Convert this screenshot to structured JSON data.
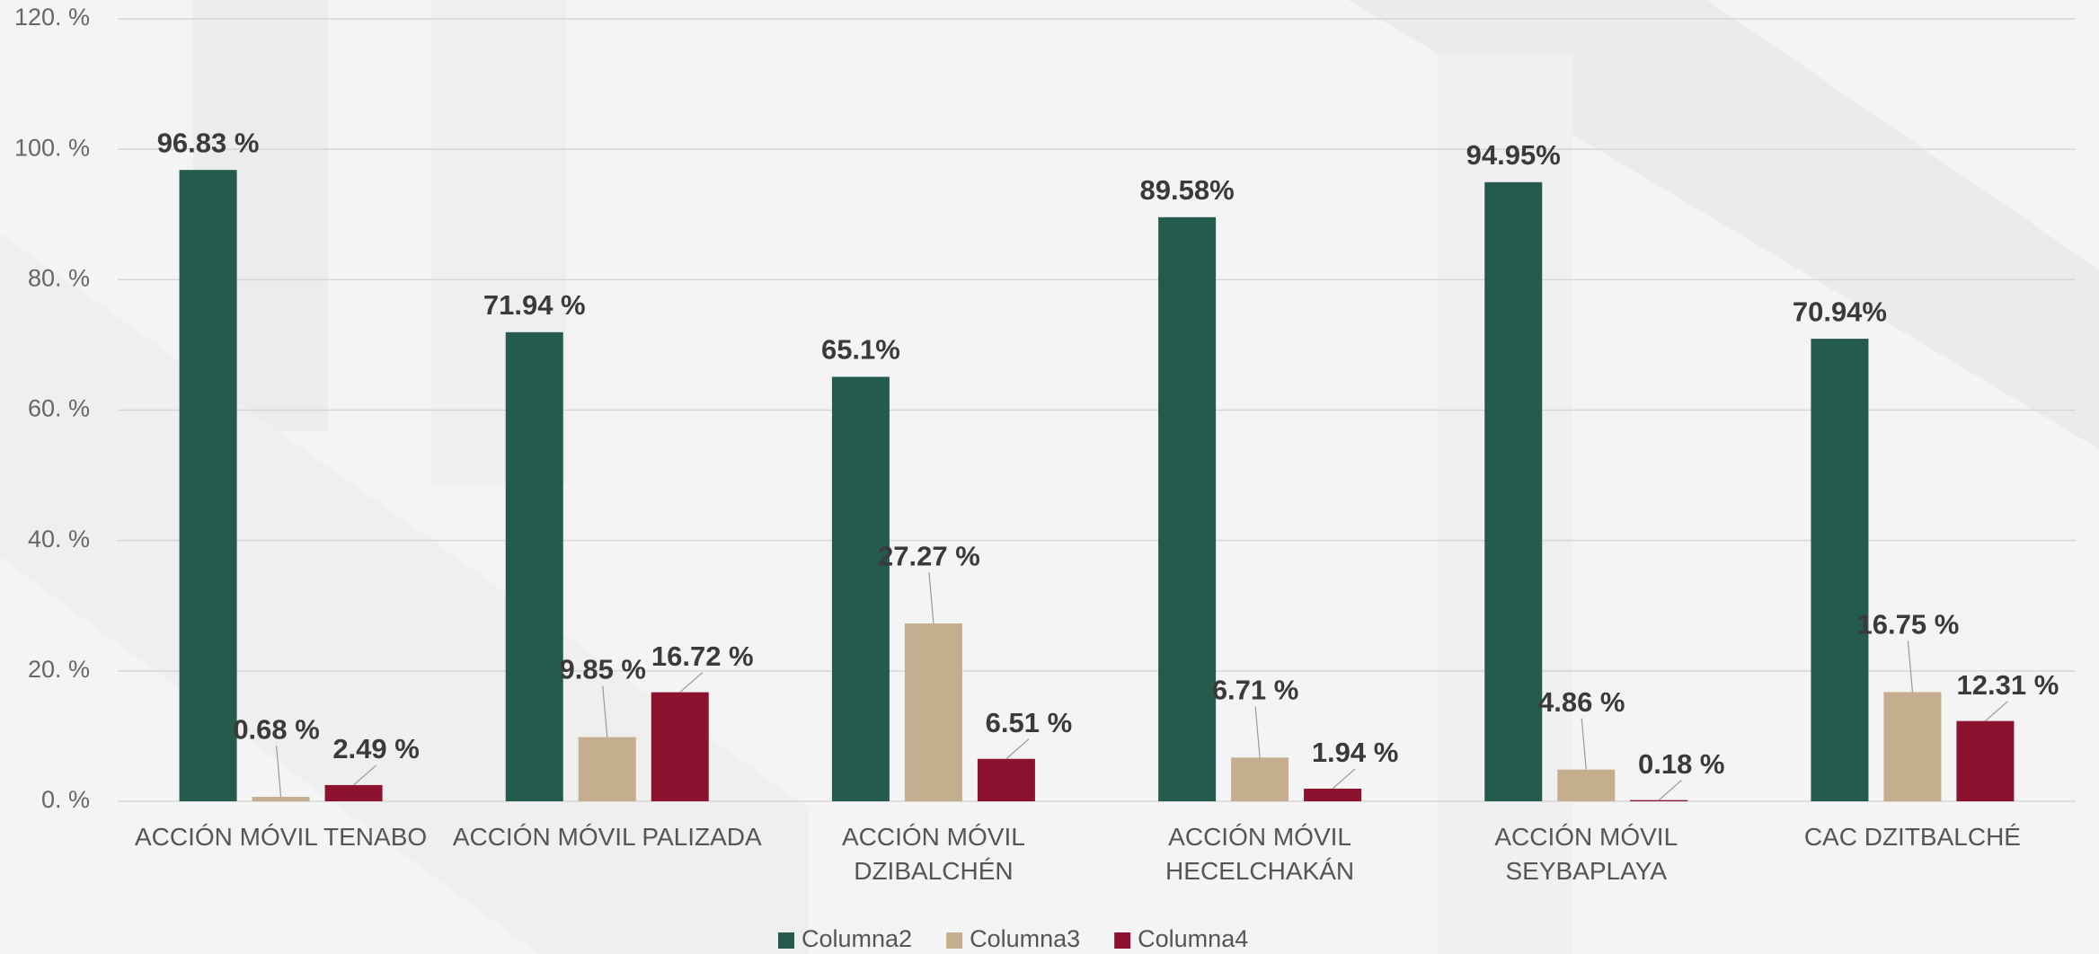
{
  "chart_data": {
    "type": "bar",
    "categories": [
      "ACCIÓN MÓVIL TENABO",
      "ACCIÓN MÓVIL PALIZADA",
      "ACCIÓN MÓVIL DZIBALCHÉN",
      "ACCIÓN MÓVIL HECELCHAKÁN",
      "ACCIÓN MÓVIL SEYBAPLAYA",
      "CAC DZITBALCHÉ"
    ],
    "series": [
      {
        "name": "Columna2",
        "color": "#245b4e",
        "values": [
          96.83,
          71.94,
          65.1,
          89.58,
          94.95,
          70.94
        ],
        "value_labels": [
          "96.83 %",
          "71.94 %",
          "65.1%",
          "89.58%",
          "94.95%",
          "70.94%"
        ]
      },
      {
        "name": "Columna3",
        "color": "#c4ae8e",
        "values": [
          0.68,
          9.85,
          27.27,
          6.71,
          4.86,
          16.75
        ],
        "value_labels": [
          "0.68 %",
          "9.85 %",
          "27.27 %",
          "6.71 %",
          "4.86 %",
          "16.75 %"
        ]
      },
      {
        "name": "Columna4",
        "color": "#8c1230",
        "values": [
          2.49,
          16.72,
          6.51,
          1.94,
          0.18,
          12.31
        ],
        "value_labels": [
          "2.49 %",
          "16.72 %",
          "6.51 %",
          "1.94 %",
          "0.18 %",
          "12.31 %"
        ]
      }
    ],
    "ylim": [
      0,
      120
    ],
    "yticks": [
      {
        "value": 0,
        "label": "0. %"
      },
      {
        "value": 20,
        "label": "20. %"
      },
      {
        "value": 40,
        "label": "40. %"
      },
      {
        "value": 60,
        "label": "60. %"
      },
      {
        "value": 80,
        "label": "80. %"
      },
      {
        "value": 100,
        "label": "100. %"
      },
      {
        "value": 120,
        "label": "120. %"
      }
    ],
    "grid": true,
    "legend": "bottom"
  }
}
